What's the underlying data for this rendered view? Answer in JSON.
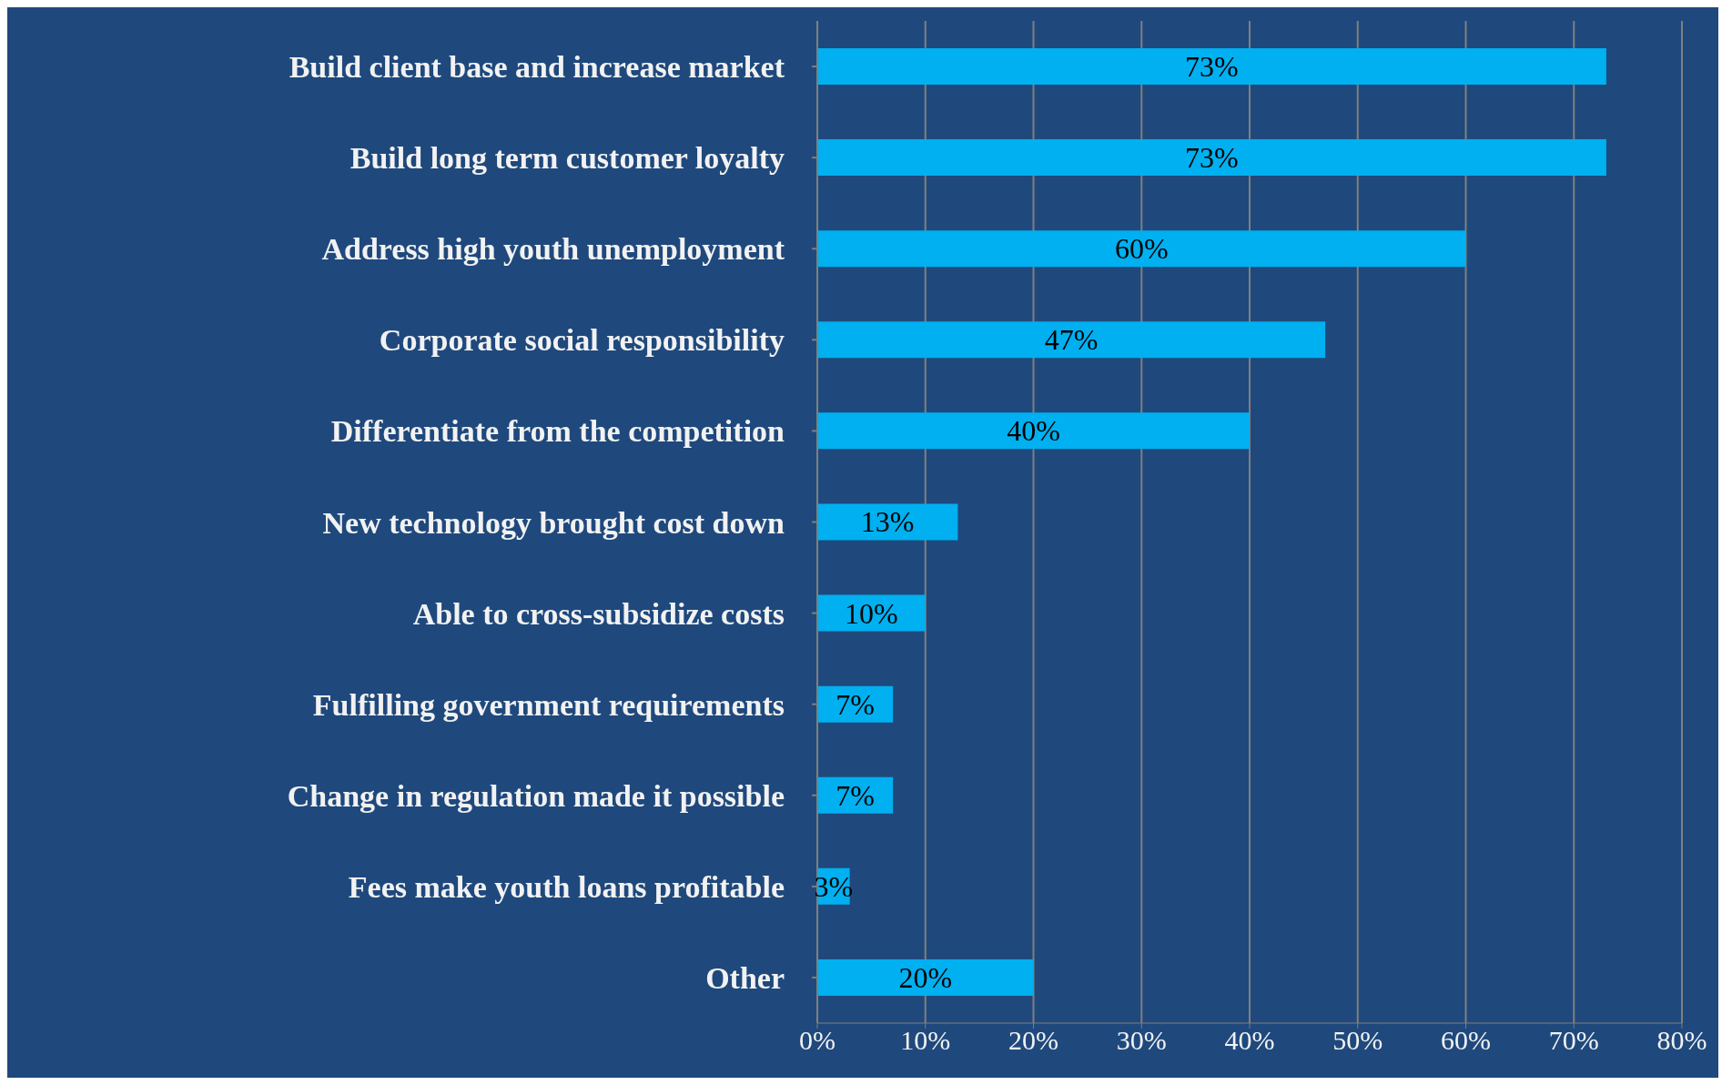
{
  "chart_data": {
    "type": "bar",
    "orientation": "horizontal",
    "categories": [
      "Build client base and increase market",
      "Build long term customer loyalty",
      "Address high youth unemployment",
      "Corporate social responsibility",
      "Differentiate from the competition",
      "New technology brought cost down",
      "Able to cross-subsidize costs",
      "Fulfilling government requirements",
      "Change in regulation made it possible",
      "Fees make youth loans profitable",
      "Other"
    ],
    "values": [
      73,
      73,
      60,
      47,
      40,
      13,
      10,
      7,
      7,
      3,
      20
    ],
    "value_labels": [
      "73%",
      "73%",
      "60%",
      "47%",
      "40%",
      "13%",
      "10%",
      "7%",
      "7%",
      "3%",
      "20%"
    ],
    "color": "#00b0f0",
    "xlim": [
      0,
      80
    ],
    "xticks": [
      {
        "value": 0,
        "label": "0%"
      },
      {
        "value": 10,
        "label": "10%"
      },
      {
        "value": 20,
        "label": "20%"
      },
      {
        "value": 30,
        "label": "30%"
      },
      {
        "value": 40,
        "label": "40%"
      },
      {
        "value": 50,
        "label": "50%"
      },
      {
        "value": 60,
        "label": "60%"
      },
      {
        "value": 70,
        "label": "70%"
      },
      {
        "value": 80,
        "label": "80%"
      }
    ],
    "grid": "x",
    "legend": false
  }
}
